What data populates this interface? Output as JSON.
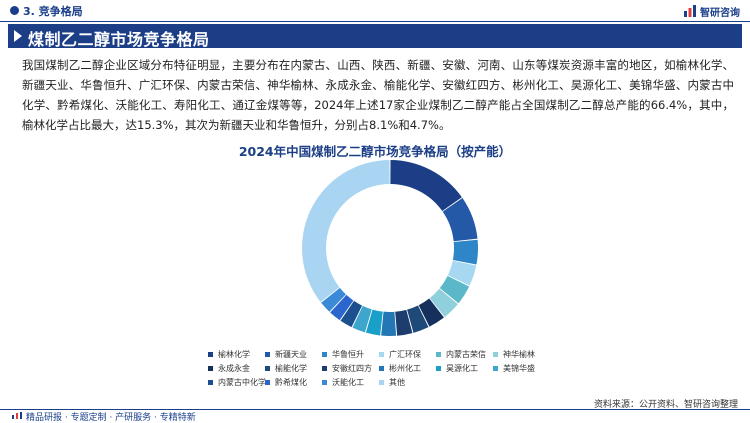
{
  "header": {
    "section_title": "3. 竞争格局",
    "logo_text": "智研咨询",
    "logo_icon": "bar-chart-logo-icon"
  },
  "banner": {
    "title": "煤制乙二醇市场竞争格局",
    "icon": "triangle-arrow-icon"
  },
  "paragraph": "我国煤制乙二醇企业区域分布特征明显，主要分布在内蒙古、山西、陕西、新疆、安徽、河南、山东等煤炭资源丰富的地区，如榆林化学、新疆天业、华鲁恒升、广汇环保、内蒙古荣信、神华榆林、永成永金、榆能化学、安徽红四方、彬州化工、昊源化工、美锦华盛、内蒙古中化学、黔希煤化、沃能化工、寿阳化工、通辽金煤等等，2024年上述17家企业煤制乙二醇产能占全国煤制乙二醇总产能的66.4%，其中，榆林化学占比最大，达15.3%，其次为新疆天业和华鲁恒升，分别占8.1%和4.7%。",
  "chart_data": {
    "type": "pie",
    "donut": true,
    "title": "2024年中国煤制乙二醇市场竞争格局（按产能）",
    "unit": "%",
    "legend_position": "bottom",
    "categories": [
      "榆林化学",
      "新疆天业",
      "华鲁恒升",
      "广汇环保",
      "内蒙古荣信",
      "神华榆林",
      "永成永金",
      "榆能化学",
      "安徽红四方",
      "彬州化工",
      "昊源化工",
      "美锦华盛",
      "内蒙古中化学",
      "黔希煤化",
      "沃能化工",
      "其他"
    ],
    "values": [
      15.3,
      8.1,
      4.7,
      4.0,
      3.8,
      3.5,
      3.3,
      3.1,
      3.0,
      2.9,
      2.8,
      2.6,
      2.5,
      2.4,
      2.4,
      35.6
    ],
    "colors": [
      "#1b3e86",
      "#2459a8",
      "#2e86c8",
      "#a6d8f2",
      "#5ab8c8",
      "#8fd0dc",
      "#16305e",
      "#1e4a7a",
      "#1c3d6e",
      "#2377b4",
      "#1a9fc8",
      "#3ea6cc",
      "#1c4f8e",
      "#2a66cc",
      "#3b8ad8",
      "#a9d5f2"
    ]
  },
  "source": "资料来源：公开资料、智研咨询整理",
  "footer": {
    "text": "精品研报 · 专题定制 · 产研服务 · 专精特新",
    "icon": "chart-footer-icon"
  }
}
